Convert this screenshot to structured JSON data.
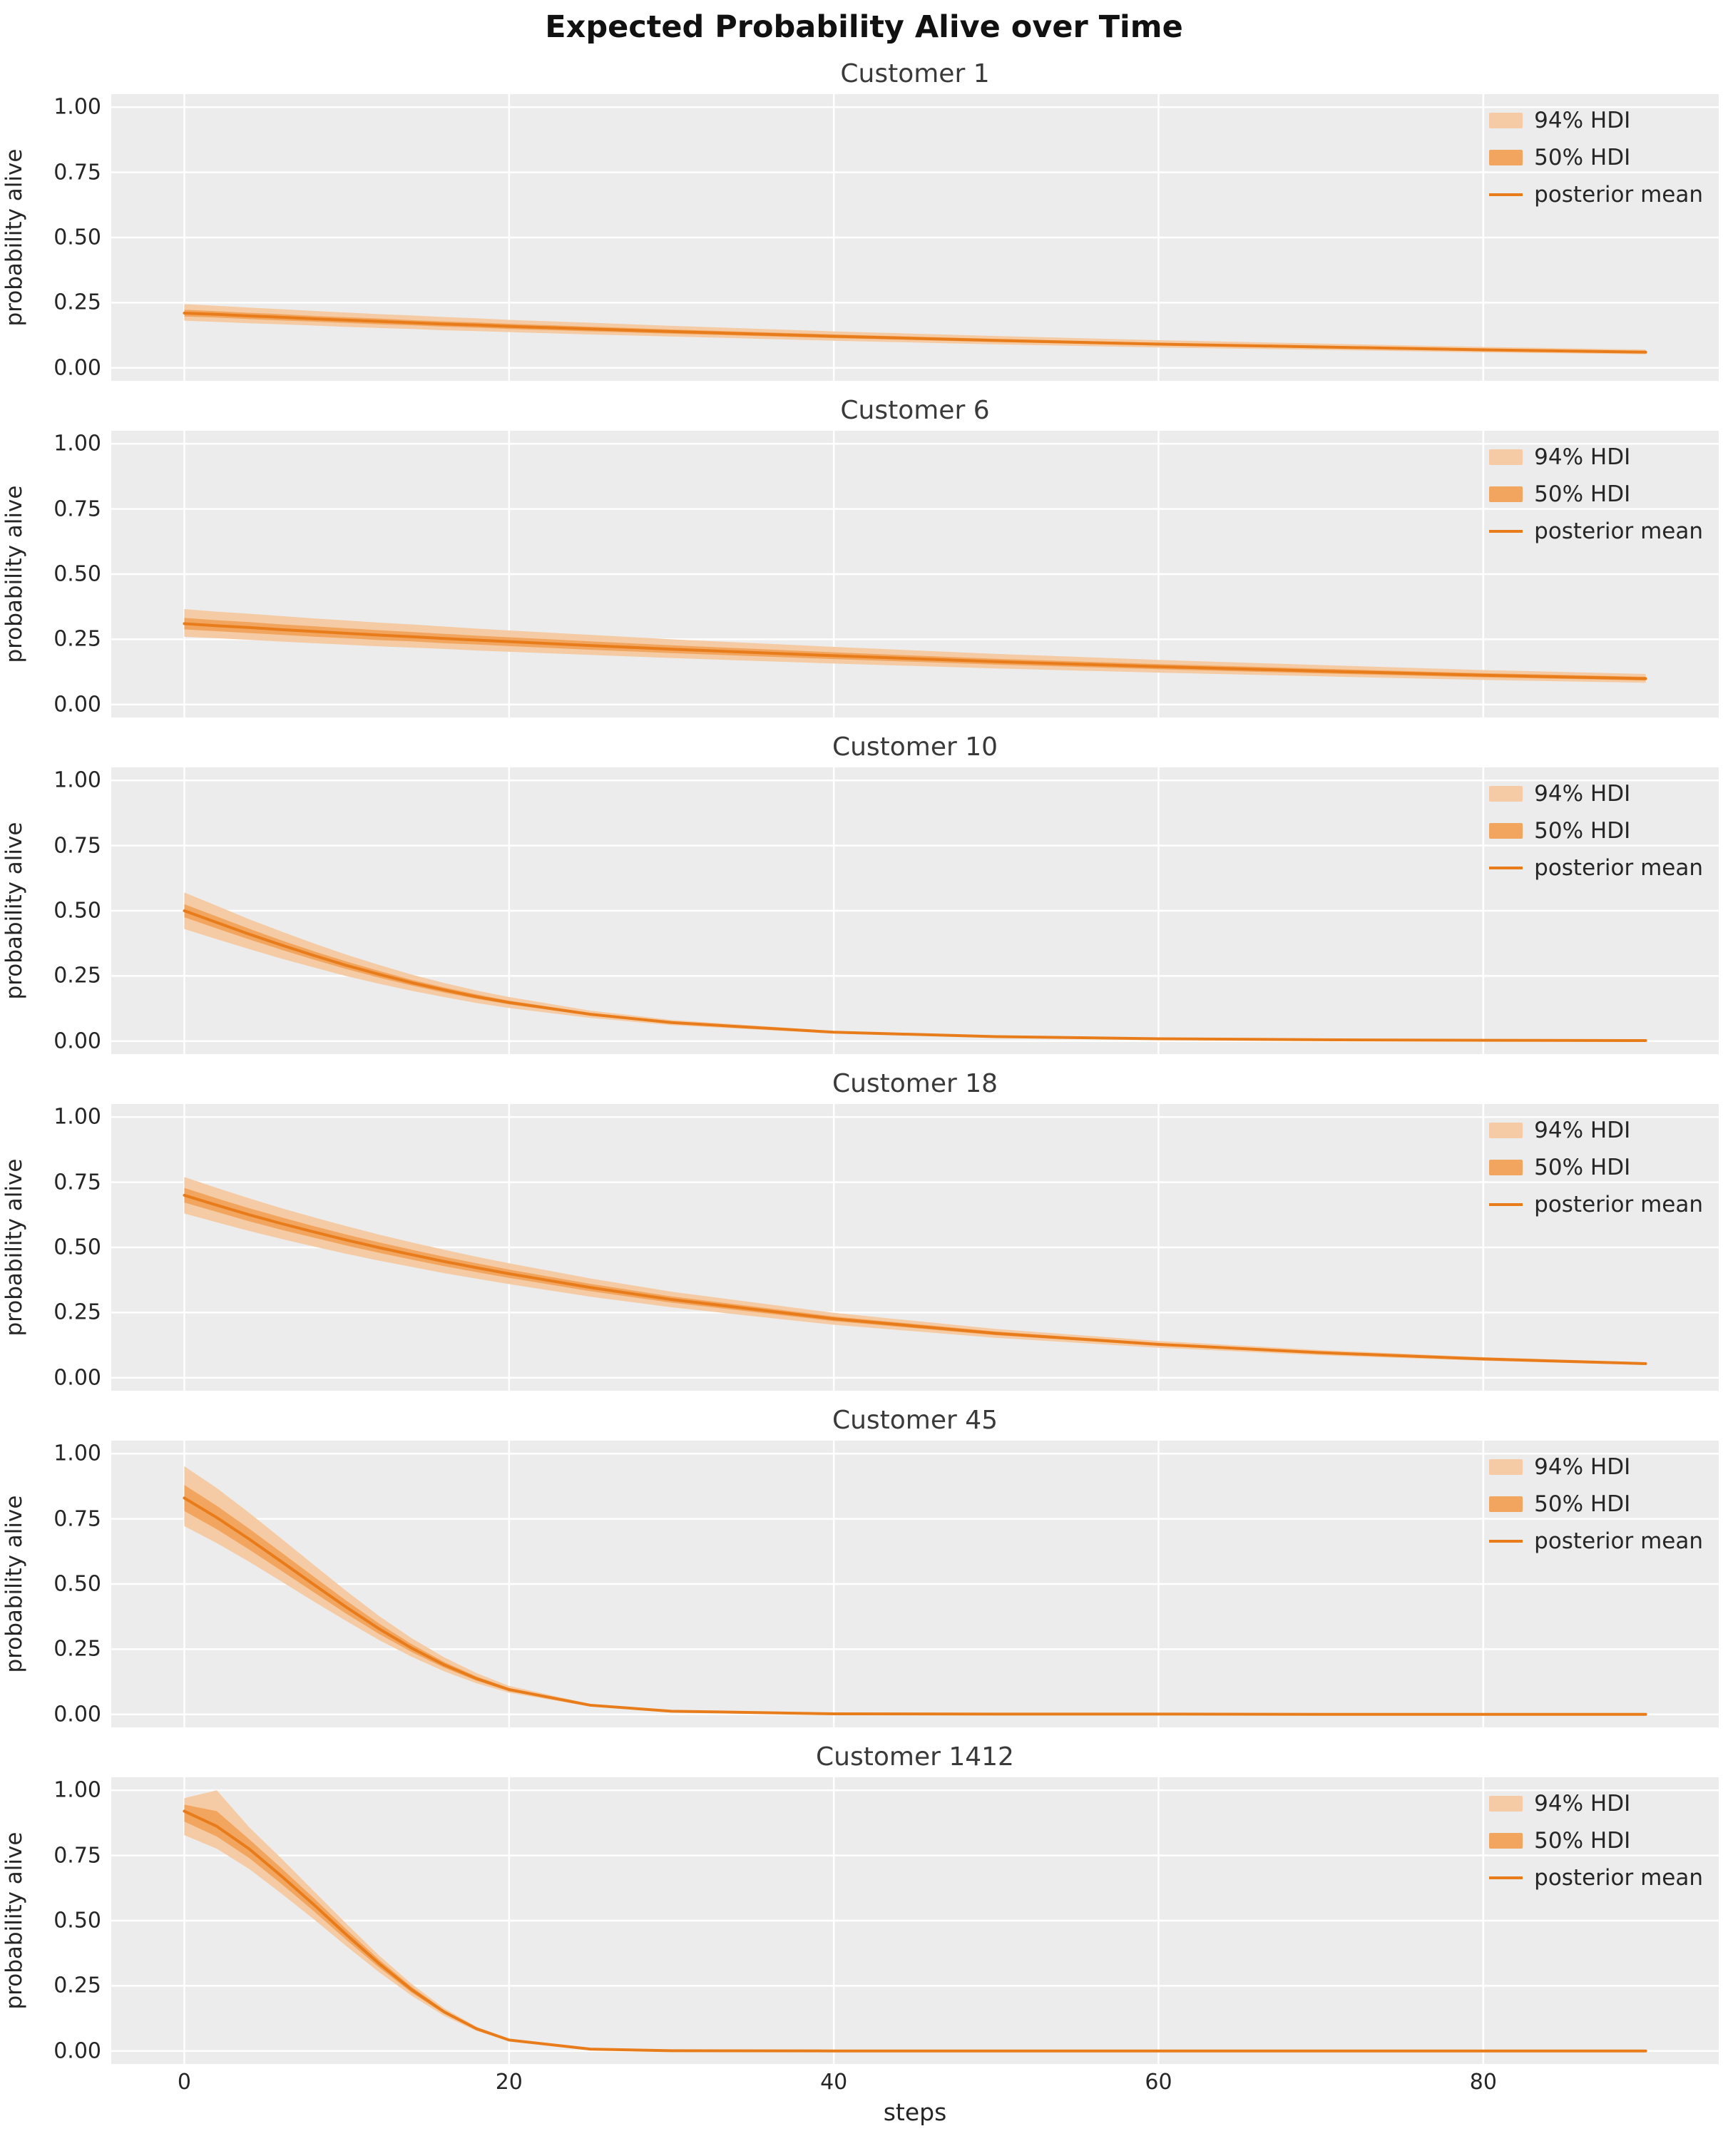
{
  "figure": {
    "title": "Expected Probability Alive over Time",
    "xlabel": "steps",
    "ylabel": "probability alive",
    "legend": {
      "hdi94": "94% HDI",
      "hdi50": "50% HDI",
      "mean": "posterior mean"
    },
    "colors": {
      "mean_line": "#e87c1b",
      "band_50": "#f2a55e",
      "band_94": "#f4cba4",
      "plot_bg": "#ececec",
      "grid": "#ffffff",
      "text": "#262626",
      "title": "#111111",
      "subplot_title": "#3a3a3a"
    },
    "xlim": [
      -4.5,
      94.5
    ],
    "ylim": [
      -0.05,
      1.05
    ],
    "xticks": [
      0,
      20,
      40,
      60,
      80
    ],
    "xtick_labels": [
      "0",
      "20",
      "40",
      "60",
      "80"
    ],
    "yticks": [
      0.0,
      0.25,
      0.5,
      0.75,
      1.0
    ],
    "ytick_labels": [
      "0.00",
      "0.25",
      "0.50",
      "0.75",
      "1.00"
    ],
    "grid": true,
    "legend_position": "upper right"
  },
  "chart_data": [
    {
      "type": "line",
      "title": "Customer 1",
      "x": [
        0,
        2,
        4,
        6,
        8,
        10,
        12,
        14,
        16,
        18,
        20,
        25,
        30,
        40,
        50,
        60,
        70,
        80,
        90
      ],
      "mean": [
        0.21,
        0.205,
        0.199,
        0.194,
        0.188,
        0.183,
        0.178,
        0.173,
        0.168,
        0.164,
        0.159,
        0.149,
        0.139,
        0.121,
        0.105,
        0.091,
        0.08,
        0.069,
        0.06
      ],
      "hdi94_upper": [
        0.244,
        0.238,
        0.231,
        0.225,
        0.218,
        0.212,
        0.206,
        0.201,
        0.195,
        0.19,
        0.184,
        0.173,
        0.161,
        0.14,
        0.122,
        0.106,
        0.093,
        0.08,
        0.07
      ],
      "hdi94_lower": [
        0.181,
        0.176,
        0.171,
        0.167,
        0.162,
        0.157,
        0.153,
        0.149,
        0.144,
        0.141,
        0.137,
        0.128,
        0.12,
        0.104,
        0.09,
        0.078,
        0.069,
        0.059,
        0.052
      ],
      "hdi50_upper": [
        0.223,
        0.217,
        0.211,
        0.206,
        0.199,
        0.194,
        0.189,
        0.183,
        0.178,
        0.174,
        0.169,
        0.158,
        0.147,
        0.128,
        0.111,
        0.096,
        0.085,
        0.073,
        0.064
      ],
      "hdi50_lower": [
        0.197,
        0.193,
        0.187,
        0.182,
        0.177,
        0.172,
        0.167,
        0.163,
        0.158,
        0.154,
        0.149,
        0.14,
        0.131,
        0.114,
        0.099,
        0.086,
        0.075,
        0.065,
        0.056
      ]
    },
    {
      "type": "line",
      "title": "Customer 6",
      "x": [
        0,
        2,
        4,
        6,
        8,
        10,
        12,
        14,
        16,
        18,
        20,
        25,
        30,
        40,
        50,
        60,
        70,
        80,
        90
      ],
      "mean": [
        0.31,
        0.302,
        0.295,
        0.287,
        0.28,
        0.273,
        0.266,
        0.26,
        0.253,
        0.247,
        0.241,
        0.226,
        0.212,
        0.187,
        0.164,
        0.145,
        0.128,
        0.112,
        0.099
      ],
      "hdi94_upper": [
        0.366,
        0.356,
        0.348,
        0.339,
        0.33,
        0.322,
        0.314,
        0.307,
        0.299,
        0.291,
        0.284,
        0.267,
        0.25,
        0.221,
        0.194,
        0.171,
        0.151,
        0.132,
        0.117
      ],
      "hdi94_lower": [
        0.26,
        0.254,
        0.248,
        0.241,
        0.235,
        0.229,
        0.223,
        0.218,
        0.213,
        0.207,
        0.202,
        0.19,
        0.178,
        0.157,
        0.138,
        0.122,
        0.108,
        0.094,
        0.083
      ],
      "hdi50_upper": [
        0.332,
        0.323,
        0.316,
        0.307,
        0.3,
        0.292,
        0.285,
        0.278,
        0.271,
        0.264,
        0.258,
        0.242,
        0.227,
        0.2,
        0.175,
        0.155,
        0.137,
        0.12,
        0.106
      ],
      "hdi50_lower": [
        0.288,
        0.281,
        0.274,
        0.267,
        0.26,
        0.254,
        0.247,
        0.242,
        0.235,
        0.23,
        0.224,
        0.21,
        0.197,
        0.174,
        0.153,
        0.135,
        0.119,
        0.104,
        0.092
      ]
    },
    {
      "type": "line",
      "title": "Customer 10",
      "x": [
        0,
        2,
        4,
        6,
        8,
        10,
        12,
        14,
        16,
        18,
        20,
        25,
        30,
        40,
        50,
        60,
        70,
        80,
        90
      ],
      "mean": [
        0.5,
        0.455,
        0.41,
        0.368,
        0.328,
        0.29,
        0.256,
        0.224,
        0.196,
        0.17,
        0.148,
        0.103,
        0.071,
        0.034,
        0.017,
        0.009,
        0.005,
        0.003,
        0.002
      ],
      "hdi94_upper": [
        0.57,
        0.519,
        0.467,
        0.42,
        0.374,
        0.331,
        0.292,
        0.255,
        0.223,
        0.194,
        0.169,
        0.117,
        0.081,
        0.039,
        0.019,
        0.01,
        0.006,
        0.004,
        0.002
      ],
      "hdi94_lower": [
        0.43,
        0.391,
        0.353,
        0.316,
        0.282,
        0.249,
        0.22,
        0.193,
        0.169,
        0.146,
        0.127,
        0.089,
        0.061,
        0.029,
        0.015,
        0.008,
        0.004,
        0.003,
        0.002
      ],
      "hdi50_upper": [
        0.525,
        0.478,
        0.431,
        0.386,
        0.344,
        0.305,
        0.269,
        0.235,
        0.206,
        0.179,
        0.155,
        0.108,
        0.075,
        0.036,
        0.018,
        0.009,
        0.005,
        0.003,
        0.002
      ],
      "hdi50_lower": [
        0.475,
        0.432,
        0.39,
        0.35,
        0.312,
        0.276,
        0.243,
        0.213,
        0.186,
        0.162,
        0.141,
        0.098,
        0.067,
        0.032,
        0.016,
        0.009,
        0.005,
        0.003,
        0.002
      ]
    },
    {
      "type": "line",
      "title": "Customer 18",
      "x": [
        0,
        2,
        4,
        6,
        8,
        10,
        12,
        14,
        16,
        18,
        20,
        25,
        30,
        40,
        50,
        60,
        70,
        80,
        90
      ],
      "mean": [
        0.7,
        0.662,
        0.625,
        0.591,
        0.559,
        0.528,
        0.499,
        0.472,
        0.446,
        0.422,
        0.399,
        0.346,
        0.3,
        0.226,
        0.17,
        0.128,
        0.096,
        0.072,
        0.054
      ],
      "hdi94_upper": [
        0.77,
        0.728,
        0.688,
        0.65,
        0.615,
        0.581,
        0.549,
        0.519,
        0.491,
        0.464,
        0.439,
        0.381,
        0.33,
        0.249,
        0.187,
        0.141,
        0.106,
        0.079,
        0.059
      ],
      "hdi94_lower": [
        0.63,
        0.596,
        0.563,
        0.532,
        0.503,
        0.475,
        0.449,
        0.425,
        0.401,
        0.38,
        0.359,
        0.311,
        0.27,
        0.203,
        0.153,
        0.115,
        0.086,
        0.065,
        0.049
      ],
      "hdi50_upper": [
        0.728,
        0.688,
        0.65,
        0.615,
        0.581,
        0.549,
        0.519,
        0.491,
        0.464,
        0.439,
        0.415,
        0.36,
        0.312,
        0.235,
        0.177,
        0.133,
        0.1,
        0.075,
        0.056
      ],
      "hdi50_lower": [
        0.672,
        0.636,
        0.6,
        0.567,
        0.537,
        0.507,
        0.479,
        0.453,
        0.428,
        0.405,
        0.383,
        0.332,
        0.288,
        0.217,
        0.163,
        0.123,
        0.092,
        0.069,
        0.052
      ]
    },
    {
      "type": "line",
      "title": "Customer 45",
      "x": [
        0,
        2,
        4,
        6,
        8,
        10,
        12,
        14,
        16,
        18,
        20,
        25,
        30,
        40,
        50,
        60,
        70,
        80,
        90
      ],
      "mean": [
        0.83,
        0.755,
        0.672,
        0.585,
        0.497,
        0.41,
        0.328,
        0.254,
        0.19,
        0.137,
        0.095,
        0.035,
        0.012,
        0.002,
        0.001,
        0.001,
        0.0,
        0.0,
        0.0
      ],
      "hdi94_upper": [
        0.952,
        0.868,
        0.773,
        0.673,
        0.572,
        0.472,
        0.377,
        0.292,
        0.219,
        0.158,
        0.109,
        0.04,
        0.014,
        0.003,
        0.002,
        0.001,
        0.001,
        0.0,
        0.0
      ],
      "hdi94_lower": [
        0.722,
        0.657,
        0.585,
        0.509,
        0.432,
        0.357,
        0.285,
        0.221,
        0.165,
        0.119,
        0.083,
        0.03,
        0.01,
        0.002,
        0.001,
        0.0,
        0.0,
        0.0,
        0.0
      ],
      "hdi50_upper": [
        0.88,
        0.8,
        0.712,
        0.62,
        0.527,
        0.435,
        0.348,
        0.269,
        0.201,
        0.145,
        0.101,
        0.037,
        0.013,
        0.002,
        0.001,
        0.001,
        0.0,
        0.0,
        0.0
      ],
      "hdi50_lower": [
        0.78,
        0.71,
        0.632,
        0.55,
        0.467,
        0.385,
        0.308,
        0.239,
        0.179,
        0.129,
        0.089,
        0.033,
        0.011,
        0.002,
        0.001,
        0.0,
        0.0,
        0.0,
        0.0
      ]
    },
    {
      "type": "line",
      "title": "Customer 1412",
      "x": [
        0,
        2,
        4,
        6,
        8,
        10,
        12,
        14,
        16,
        18,
        20,
        25,
        30,
        40,
        50,
        60,
        70,
        80,
        90
      ],
      "mean": [
        0.92,
        0.862,
        0.775,
        0.67,
        0.56,
        0.445,
        0.335,
        0.235,
        0.15,
        0.085,
        0.042,
        0.007,
        0.001,
        0.0,
        0.0,
        0.0,
        0.0,
        0.0,
        0.0
      ],
      "hdi94_upper": [
        0.97,
        1.0,
        0.858,
        0.737,
        0.612,
        0.487,
        0.366,
        0.257,
        0.164,
        0.093,
        0.047,
        0.008,
        0.002,
        0.0,
        0.0,
        0.0,
        0.0,
        0.0,
        0.0
      ],
      "hdi94_lower": [
        0.828,
        0.776,
        0.698,
        0.603,
        0.504,
        0.401,
        0.302,
        0.212,
        0.135,
        0.077,
        0.038,
        0.006,
        0.001,
        0.0,
        0.0,
        0.0,
        0.0,
        0.0,
        0.0
      ],
      "hdi50_upper": [
        0.945,
        0.92,
        0.812,
        0.7,
        0.585,
        0.465,
        0.35,
        0.246,
        0.157,
        0.089,
        0.044,
        0.007,
        0.001,
        0.0,
        0.0,
        0.0,
        0.0,
        0.0,
        0.0
      ],
      "hdi50_lower": [
        0.88,
        0.823,
        0.74,
        0.64,
        0.535,
        0.425,
        0.32,
        0.224,
        0.143,
        0.081,
        0.04,
        0.007,
        0.001,
        0.0,
        0.0,
        0.0,
        0.0,
        0.0,
        0.0
      ]
    }
  ]
}
